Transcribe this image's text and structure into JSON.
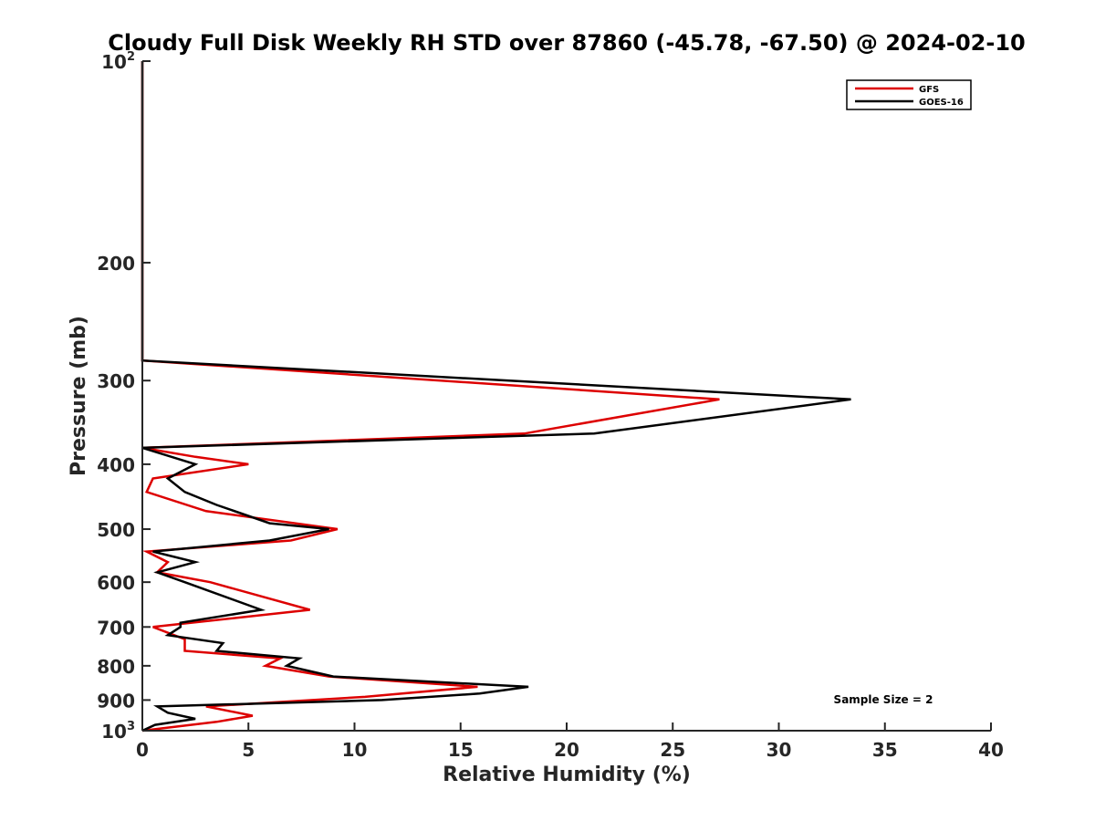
{
  "chart_data": {
    "type": "line",
    "title": "Cloudy Full Disk Weekly RH STD over 87860 (-45.78, -67.50) @ 2024-02-10",
    "xlabel": "Relative Humidity (%)",
    "ylabel": "Pressure (mb)",
    "xlim": [
      0,
      40
    ],
    "ylim": [
      100,
      1000
    ],
    "y_scale": "log",
    "y_reversed": true,
    "x_ticks": [
      0,
      5,
      10,
      15,
      20,
      25,
      30,
      35,
      40
    ],
    "x_tick_labels": [
      "0",
      "5",
      "10",
      "15",
      "20",
      "25",
      "30",
      "35",
      "40"
    ],
    "y_ticks": [
      100,
      200,
      300,
      400,
      500,
      600,
      700,
      800,
      900,
      1000
    ],
    "y_tick_labels": [
      {
        "base": "10",
        "sup": "2"
      },
      {
        "base": "200",
        "sup": ""
      },
      {
        "base": "300",
        "sup": ""
      },
      {
        "base": "400",
        "sup": ""
      },
      {
        "base": "500",
        "sup": ""
      },
      {
        "base": "600",
        "sup": ""
      },
      {
        "base": "700",
        "sup": ""
      },
      {
        "base": "800",
        "sup": ""
      },
      {
        "base": "900",
        "sup": ""
      },
      {
        "base": "10",
        "sup": "3"
      }
    ],
    "grid": false,
    "legend_position": "top-right",
    "annotation": "Sample Size = 2",
    "series": [
      {
        "name": "GFS",
        "color": "#dd0000",
        "points": [
          [
            0,
            100
          ],
          [
            0,
            150
          ],
          [
            0,
            200
          ],
          [
            0,
            250
          ],
          [
            0,
            280
          ],
          [
            27.2,
            320
          ],
          [
            18.0,
            360
          ],
          [
            0,
            378
          ],
          [
            2.5,
            390
          ],
          [
            5.0,
            400
          ],
          [
            0.5,
            420
          ],
          [
            0.2,
            440
          ],
          [
            3.0,
            470
          ],
          [
            9.2,
            500
          ],
          [
            7.0,
            520
          ],
          [
            0.2,
            540
          ],
          [
            1.2,
            560
          ],
          [
            0.7,
            580
          ],
          [
            3.2,
            600
          ],
          [
            7.9,
            660
          ],
          [
            0.5,
            700
          ],
          [
            2.0,
            730
          ],
          [
            2.0,
            760
          ],
          [
            6.5,
            780
          ],
          [
            5.8,
            800
          ],
          [
            8.8,
            830
          ],
          [
            15.8,
            860
          ],
          [
            10.5,
            890
          ],
          [
            3.0,
            920
          ],
          [
            5.2,
            950
          ],
          [
            3.5,
            970
          ],
          [
            0,
            1000
          ]
        ]
      },
      {
        "name": "GOES-16",
        "color": "#000000",
        "points": [
          [
            0,
            100
          ],
          [
            0,
            150
          ],
          [
            0,
            200
          ],
          [
            0,
            250
          ],
          [
            0,
            280
          ],
          [
            33.4,
            320
          ],
          [
            21.3,
            360
          ],
          [
            0,
            378
          ],
          [
            2.5,
            400
          ],
          [
            1.2,
            420
          ],
          [
            2.0,
            440
          ],
          [
            3.5,
            460
          ],
          [
            6.0,
            490
          ],
          [
            8.8,
            500
          ],
          [
            6.0,
            520
          ],
          [
            0.5,
            540
          ],
          [
            2.5,
            560
          ],
          [
            0.7,
            580
          ],
          [
            2.0,
            600
          ],
          [
            5.6,
            660
          ],
          [
            1.8,
            690
          ],
          [
            1.8,
            700
          ],
          [
            1.2,
            720
          ],
          [
            3.8,
            740
          ],
          [
            3.5,
            760
          ],
          [
            7.4,
            780
          ],
          [
            6.8,
            800
          ],
          [
            9.0,
            830
          ],
          [
            18.2,
            860
          ],
          [
            15.9,
            880
          ],
          [
            11.3,
            900
          ],
          [
            0.7,
            920
          ],
          [
            1.2,
            940
          ],
          [
            2.5,
            960
          ],
          [
            0.6,
            980
          ],
          [
            0,
            1000
          ]
        ]
      }
    ]
  }
}
